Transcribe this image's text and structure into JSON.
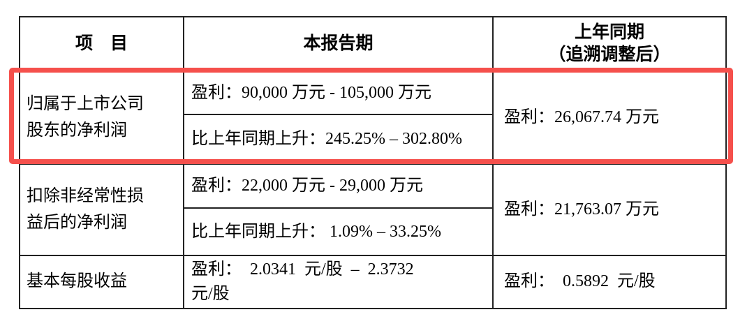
{
  "page": {
    "background": "#ffffff"
  },
  "highlight": {
    "color": "#f5504c"
  },
  "table": {
    "headers": {
      "item": "项　目",
      "current": "本报告期",
      "prior": "上年同期\n（追溯调整后）"
    },
    "rows": [
      {
        "item": "归属于上市公司\n股东的净利润",
        "current_profit": "盈利：90,000 万元 - 105,000 万元",
        "current_change": "比上年同期上升：245.25% – 302.80%",
        "prior": "盈利：26,067.74 万元",
        "highlighted": true
      },
      {
        "item": "扣除非经常性损\n益后的净利润",
        "current_profit": "盈利：22,000 万元 - 29,000 万元",
        "current_change": "比上年同期上升： 1.09% – 33.25%",
        "prior": "盈利：21,763.07 万元",
        "highlighted": false
      },
      {
        "item": "基本每股收益",
        "current_profit": "盈利：  2.0341  元/股  –  2.3732\n元/股",
        "current_change": null,
        "prior": "盈利：  0.5892  元/股",
        "highlighted": false
      }
    ]
  }
}
